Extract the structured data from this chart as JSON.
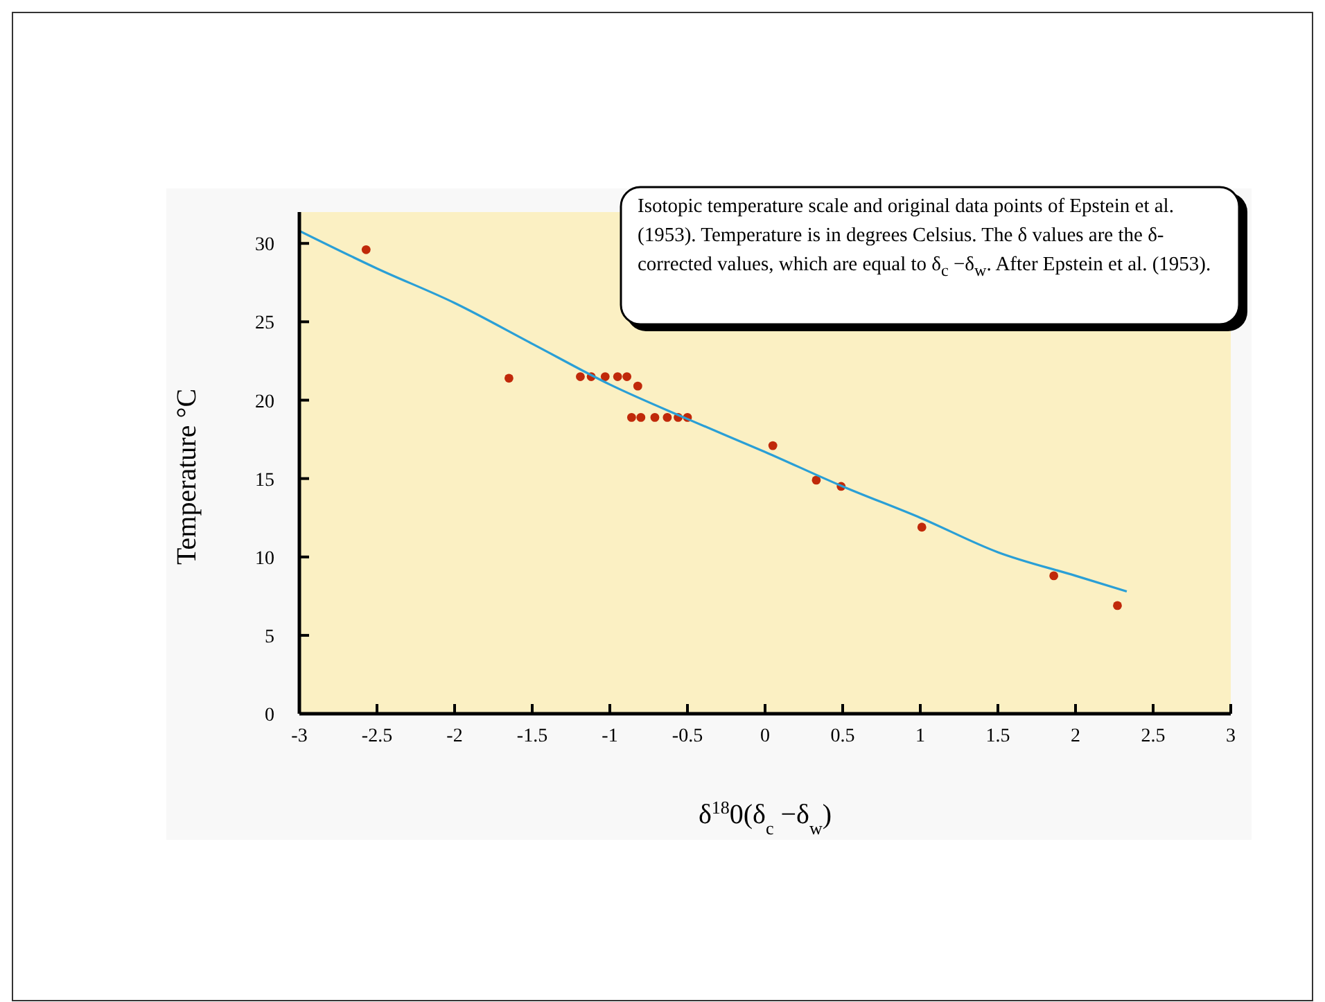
{
  "chart_data": {
    "type": "scatter",
    "xlabel": "δ$^{18}$0(δ$_{c}$ −δ$_{w}$)",
    "ylabel": "Temperature °C",
    "annotations": [
      "Isotopic temperature scale and original data points of Epstein et al. (1953). Temperature is in degrees Celsius. The δ values are the δ-corrected values, which are equal to δ$_{c}$ −δ$_{w}$. After Epstein et al. (1953)."
    ],
    "xlim": [
      -3,
      3
    ],
    "xticks": [
      -3,
      -2.5,
      -2,
      -1.5,
      -1,
      -0.5,
      0,
      0.5,
      1,
      1.5,
      2,
      2.5,
      3
    ],
    "ylim": [
      0,
      32
    ],
    "yticks": [
      0,
      5,
      10,
      15,
      20,
      25,
      30
    ],
    "grid": false,
    "series": [
      {
        "color": "#c0290a",
        "marker": "circle",
        "x": [
          -2.57,
          -1.65,
          -1.19,
          -1.12,
          -1.03,
          -0.95,
          -0.89,
          -0.82,
          -0.86,
          -0.8,
          -0.71,
          -0.63,
          -0.56,
          -0.5,
          0.05,
          0.33,
          0.49,
          1.01,
          1.86,
          2.27
        ],
        "values": [
          29.6,
          21.4,
          21.5,
          21.5,
          21.5,
          21.5,
          21.5,
          20.9,
          18.9,
          18.9,
          18.9,
          18.9,
          18.9,
          18.9,
          17.1,
          14.9,
          14.5,
          11.9,
          8.8,
          6.9
        ]
      },
      {
        "type": "line",
        "color": "#2a9fd6",
        "marker": "none",
        "x": [
          -3,
          -2.5,
          -2,
          -1.5,
          -1,
          -0.5,
          0,
          0.5,
          1,
          1.5,
          2,
          2.33
        ],
        "values": [
          30.8,
          28.4,
          26.2,
          23.6,
          21.0,
          18.8,
          16.7,
          14.5,
          12.5,
          10.3,
          8.8,
          7.8
        ]
      }
    ]
  }
}
